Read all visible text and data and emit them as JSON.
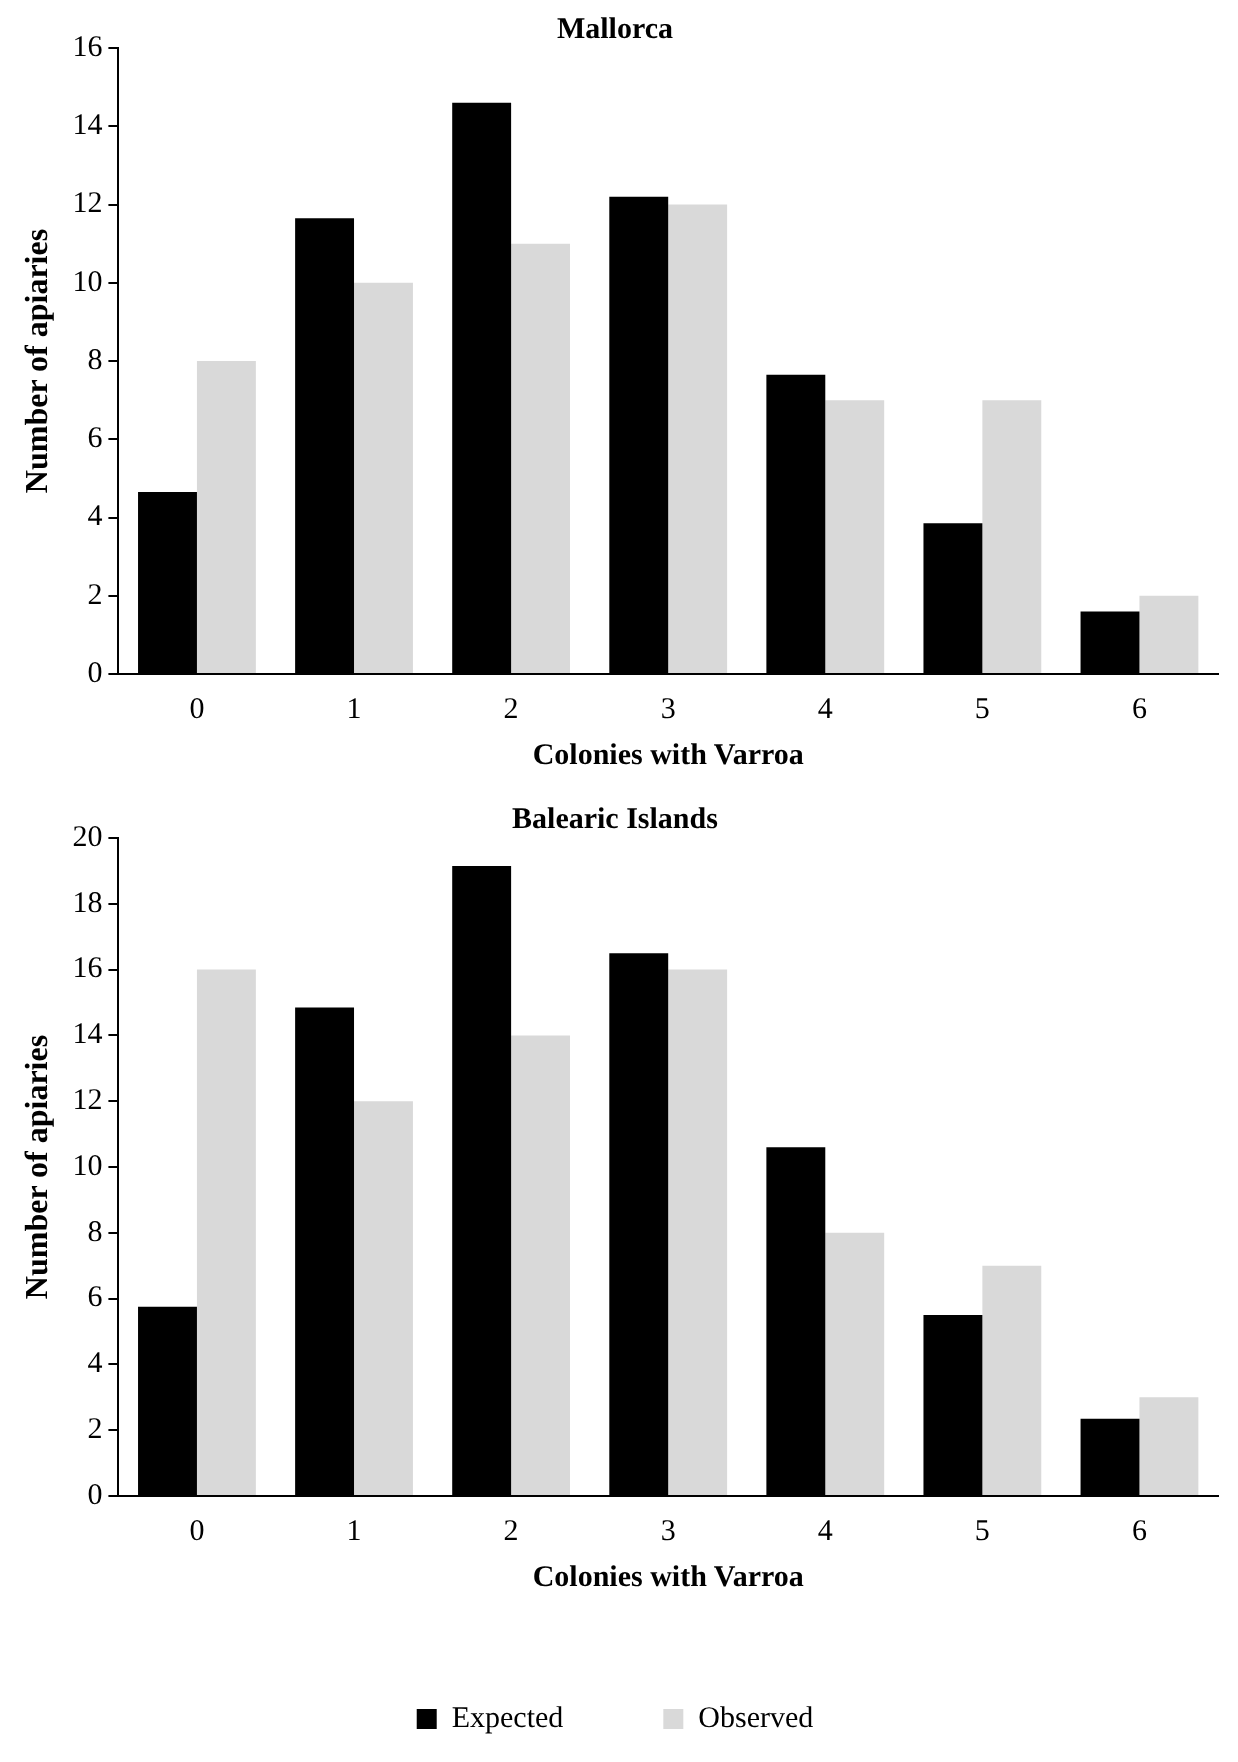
{
  "chart_data": [
    {
      "type": "bar",
      "title": "Mallorca",
      "xlabel": "Colonies with Varroa",
      "ylabel": "Number of apiaries",
      "categories": [
        "0",
        "1",
        "2",
        "3",
        "4",
        "5",
        "6"
      ],
      "series": [
        {
          "color": "#000000",
          "values": [
            4.65,
            11.65,
            14.6,
            12.2,
            7.65,
            3.85,
            1.6
          ]
        },
        {
          "color": "#d9d9d9",
          "values": [
            8,
            10,
            11,
            12,
            7,
            7,
            2
          ]
        }
      ],
      "ylim": [
        0,
        16
      ],
      "yticks": [
        0,
        2,
        4,
        6,
        8,
        10,
        12,
        14,
        16
      ],
      "grid": false,
      "legend": false
    },
    {
      "type": "bar",
      "title": "Balearic Islands",
      "xlabel": "Colonies with Varroa",
      "ylabel": "Number of apiaries",
      "categories": [
        "0",
        "1",
        "2",
        "3",
        "4",
        "5",
        "6"
      ],
      "series": [
        {
          "name": "Expected",
          "color": "#000000",
          "values": [
            5.75,
            14.85,
            19.15,
            16.5,
            10.6,
            5.5,
            2.35
          ]
        },
        {
          "name": "Observed",
          "color": "#d9d9d9",
          "values": [
            16,
            12,
            14,
            16,
            8,
            7,
            3
          ]
        }
      ],
      "ylim": [
        0,
        20
      ],
      "yticks": [
        0,
        2,
        4,
        6,
        8,
        10,
        12,
        14,
        16,
        18,
        20
      ],
      "grid": false,
      "legend": "bottom"
    }
  ]
}
